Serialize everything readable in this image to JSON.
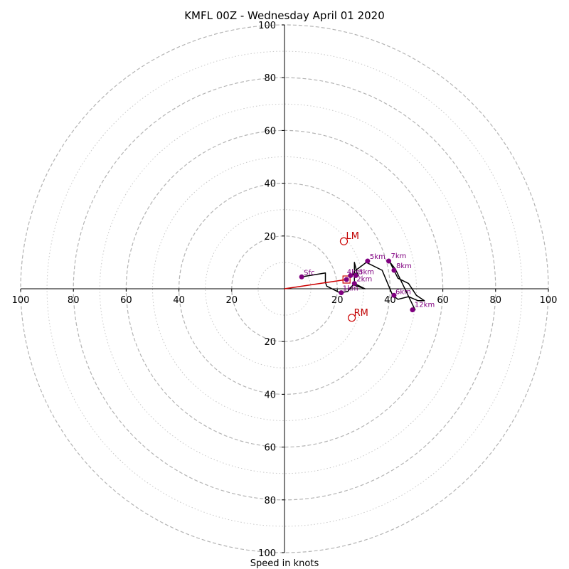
{
  "chart_data": {
    "type": "scatter",
    "subtype": "hodograph",
    "title": "KMFL 00Z - Wednesday April 01 2020",
    "xlabel": "Speed in knots",
    "ylabel": "",
    "xlim": [
      -100,
      100
    ],
    "ylim": [
      -100,
      100
    ],
    "grid": {
      "major_rings": [
        20,
        40,
        60,
        80,
        100
      ],
      "minor_rings": [
        10,
        30,
        50,
        70,
        90
      ],
      "major_style": "dashed",
      "minor_style": "dotted"
    },
    "tick_labels": {
      "x": [
        "100",
        "80",
        "60",
        "40",
        "20",
        "20",
        "40",
        "60",
        "80",
        "100"
      ],
      "y": [
        "100",
        "80",
        "60",
        "40",
        "20",
        "20",
        "40",
        "60",
        "80",
        "100"
      ]
    },
    "hodograph_trace": {
      "color": "#000000",
      "points": [
        [
          6.5,
          4.5
        ],
        [
          15.5,
          6
        ],
        [
          15.5,
          2.5
        ],
        [
          16,
          1
        ],
        [
          21,
          -1.5
        ],
        [
          24,
          -1
        ],
        [
          26,
          1.5
        ],
        [
          30.5,
          0
        ],
        [
          26.5,
          2
        ],
        [
          26.5,
          10
        ],
        [
          27.5,
          6
        ],
        [
          25.5,
          5.5
        ],
        [
          28,
          5
        ],
        [
          27,
          7
        ],
        [
          31,
          10
        ],
        [
          37,
          7
        ],
        [
          41,
          -2.5
        ],
        [
          43,
          -4
        ],
        [
          47,
          -3
        ],
        [
          50.5,
          -4.5
        ],
        [
          53,
          -4.5
        ],
        [
          50,
          -2.5
        ],
        [
          47,
          2
        ],
        [
          43,
          4
        ],
        [
          40,
          10
        ],
        [
          42,
          7.5
        ],
        [
          49.5,
          -8
        ],
        [
          48,
          -8
        ]
      ]
    },
    "height_markers": {
      "color": "#800080",
      "points": [
        {
          "label": "Sfc",
          "x": 6.5,
          "y": 4.5
        },
        {
          "label": "1km",
          "x": 21.5,
          "y": -1.5
        },
        {
          "label": "2km",
          "x": 26.5,
          "y": 2
        },
        {
          "label": "3km",
          "x": 27,
          "y": 5
        },
        {
          "label": "4km",
          "x": 25,
          "y": 5
        },
        {
          "label": "",
          "x": 23.5,
          "y": 3.5
        },
        {
          "label": "5km",
          "x": 31.5,
          "y": 10.5
        },
        {
          "label": "6km",
          "x": 41.5,
          "y": -2.5
        },
        {
          "label": "7km",
          "x": 39.5,
          "y": 10.5
        },
        {
          "label": "8km",
          "x": 41.5,
          "y": 7
        },
        {
          "label": "12km",
          "x": 48.5,
          "y": -8
        }
      ]
    },
    "storm_motion": {
      "color": "#cc0000",
      "vector": {
        "x": 23.5,
        "y": 3.5
      },
      "markers": [
        {
          "label": "LM",
          "x": 22.5,
          "y": 18
        },
        {
          "label": "RM",
          "x": 25.5,
          "y": -11
        }
      ],
      "mean_wind_marker": {
        "label": "",
        "x": 23.5,
        "y": 3.5
      }
    }
  }
}
